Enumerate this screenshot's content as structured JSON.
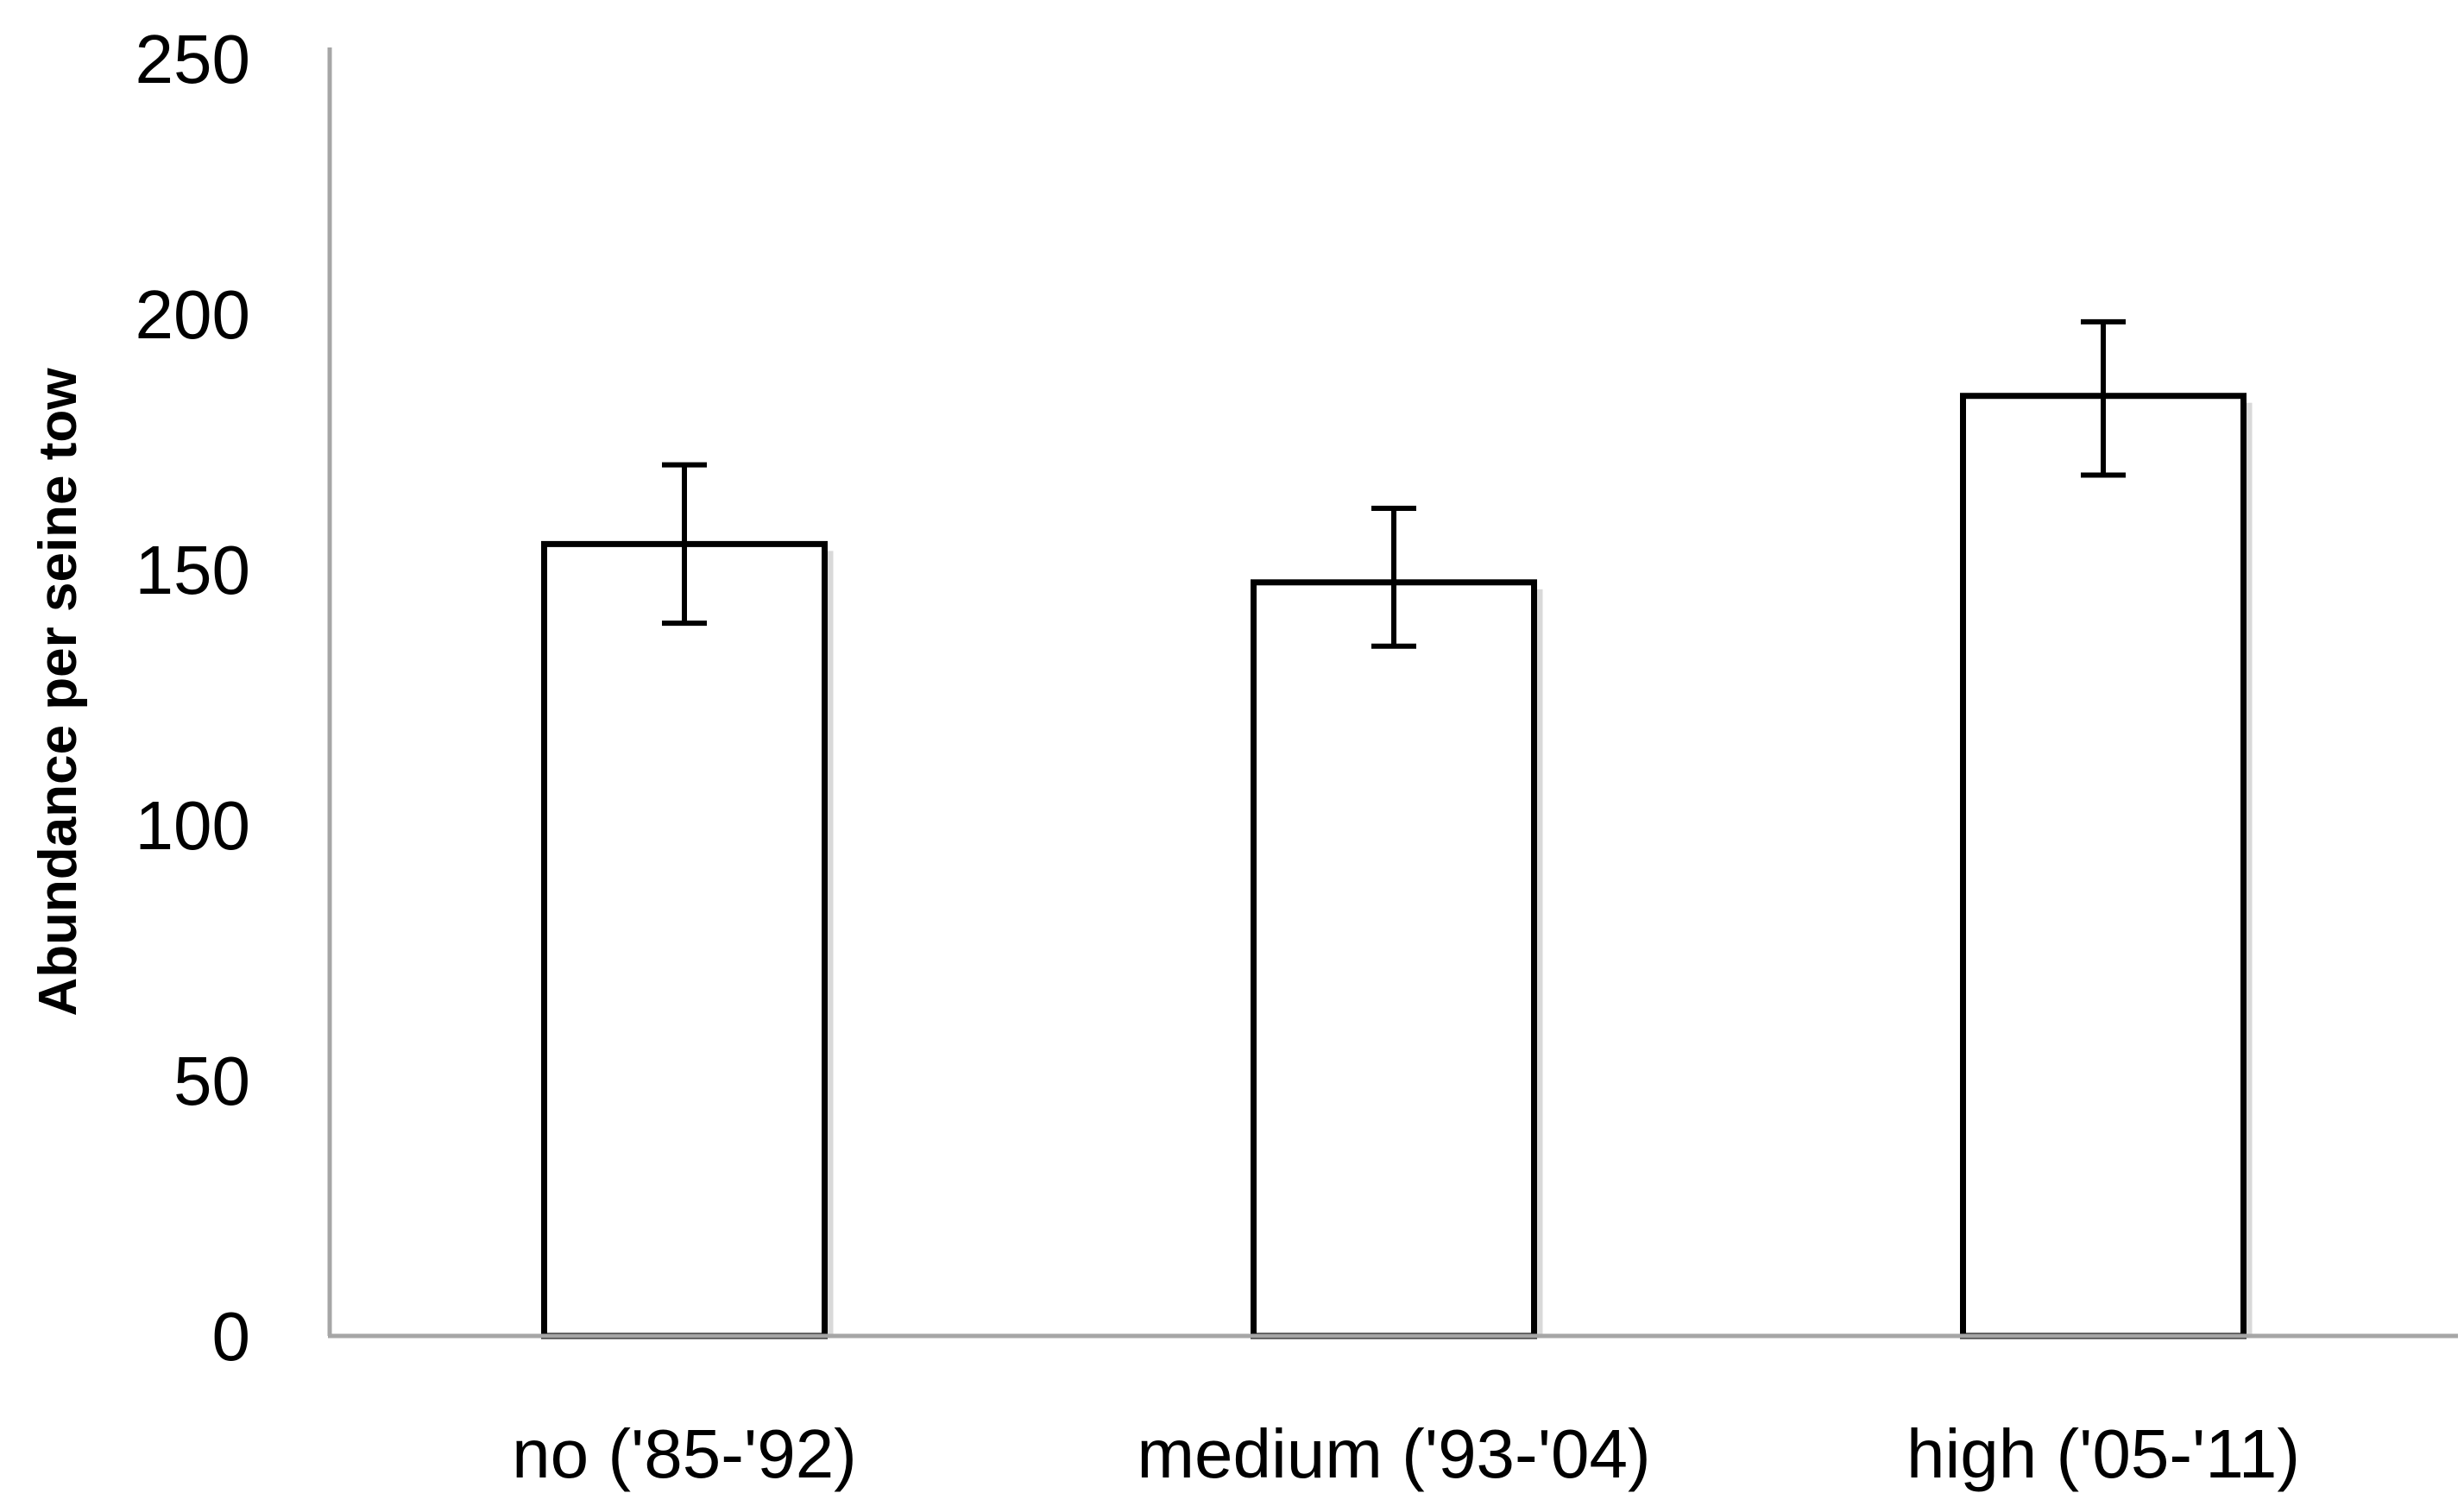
{
  "chart_data": {
    "type": "bar",
    "title": "",
    "xlabel": "",
    "ylabel": "Abundance per seine tow",
    "categories": [
      "no ('85-'92)",
      "medium ('93-'04)",
      "high ('05-'11)"
    ],
    "values": [
      155,
      147.5,
      184
    ],
    "error_low": [
      139.5,
      135,
      168.5
    ],
    "error_high": [
      170.5,
      162,
      198.5
    ],
    "ylim": [
      0,
      250
    ],
    "yticks": [
      0,
      50,
      100,
      150,
      200,
      250
    ],
    "ytick_labels": [
      "0",
      "50",
      "100",
      "150",
      "200",
      "250"
    ],
    "grid": false,
    "legend": "none",
    "colors": {
      "bar_fill": "#ffffff",
      "bar_stroke": "#000000",
      "bar_shadow": "#d9d9d9",
      "axis": "#a6a6a6",
      "error_bar": "#000000"
    }
  }
}
